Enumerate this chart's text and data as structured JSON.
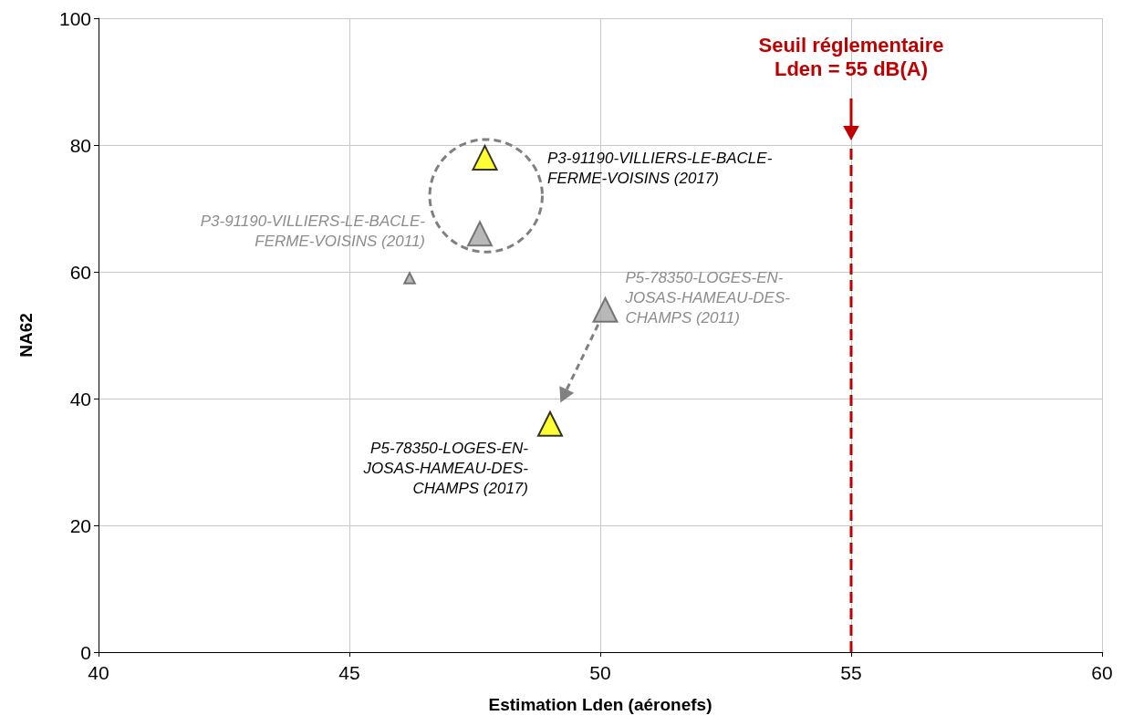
{
  "chart_data": {
    "type": "bubble",
    "xlabel": "Estimation Lden (aéronefs)",
    "ylabel": "NA62",
    "xlim": [
      40,
      60
    ],
    "xticks": [
      40,
      45,
      50,
      55,
      60
    ],
    "ylim": [
      0,
      100
    ],
    "yticks": [
      0,
      20,
      40,
      60,
      80,
      100
    ],
    "grid": true,
    "marker": "triangle",
    "series": [
      {
        "color": "#ffff00",
        "x": [
          47.7,
          49
        ],
        "values": [
          78,
          36
        ],
        "sizes": [
          1,
          1
        ]
      },
      {
        "color": "#a6a6a6",
        "x": [
          47.6,
          50.1
        ],
        "values": [
          66,
          54
        ],
        "sizes": [
          1,
          1
        ]
      },
      {
        "color": "#a6a6a6",
        "x": [
          46.2
        ],
        "values": [
          59
        ],
        "sizes": [
          0.2
        ]
      }
    ],
    "ref_lines": [
      {
        "axis": "x",
        "value": 55,
        "label": "Seuil réglementaire\nLden = 55 dB(A)",
        "color": "#c00000",
        "line_style": "dashed"
      }
    ],
    "annotations": [
      "P3-91190-VILLIERS-LE-BACLE-\nFERME-VOISINS (2017)",
      "P3-91190-VILLIERS-LE-BACLE-\nFERME-VOISINS (2011)",
      {
        "text": "P5-78350-LOGES-EN-\nJOSAS-HAMEAU-DES-\nCHAMPS (2011)",
        "x": 50.1,
        "y": 54
      },
      {
        "text": "P5-78350-LOGES-EN-\nJOSAS-HAMEAU-DES-\nCHAMPS (2017)",
        "x": 49,
        "y": 36
      }
    ]
  }
}
